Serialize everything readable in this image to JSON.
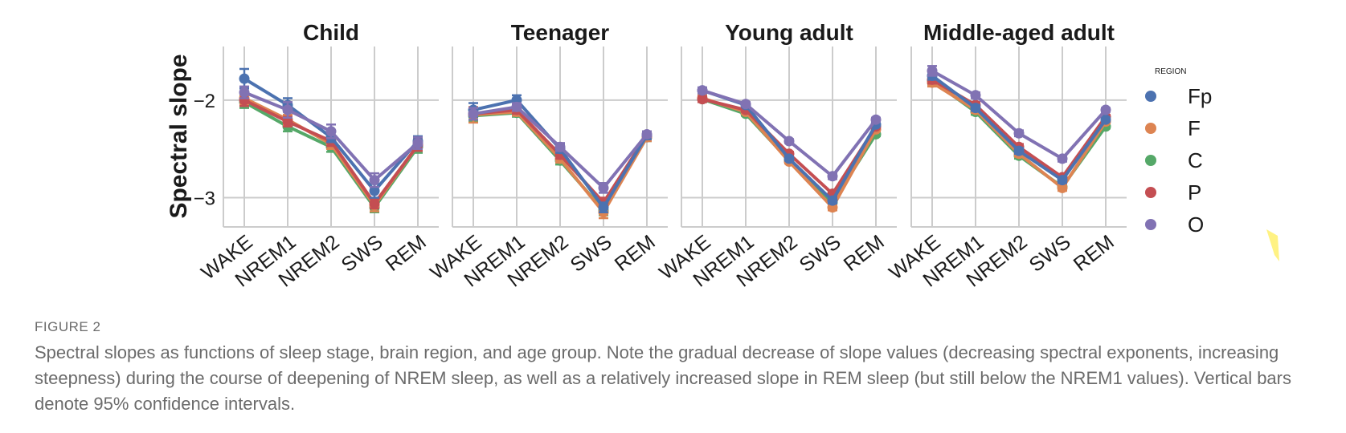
{
  "figure": {
    "label": "FIGURE 2",
    "caption": "Spectral slopes as functions of sleep stage, brain region, and age group. Note the gradual decrease of slope values (decreasing spectral exponents, increasing steepness) during the course of deepening of NREM sleep, as well as a relatively increased slope in REM sleep (but still below the NREM1 values). Vertical bars denote 95% confidence intervals."
  },
  "chart_data": {
    "type": "line",
    "ylabel": "Spectral slope",
    "yticks": [
      -2,
      -3
    ],
    "ylim": [
      -3.3,
      -1.45
    ],
    "grid": true,
    "categories": [
      "WAKE",
      "NREM1",
      "NREM2",
      "SWS",
      "REM"
    ],
    "legend": {
      "title": "REGION",
      "placement": "right"
    },
    "colors": {
      "Fp": "#4c72b0",
      "F": "#dd8452",
      "C": "#55a868",
      "P": "#c44e52",
      "O": "#8172b3"
    },
    "panels": [
      {
        "title": "Child",
        "series": [
          {
            "name": "Fp",
            "values": [
              -1.78,
              -2.05,
              -2.38,
              -2.93,
              -2.42
            ],
            "ci": [
              0.1,
              0.07,
              0.05,
              0.07,
              0.05
            ]
          },
          {
            "name": "F",
            "values": [
              -1.98,
              -2.2,
              -2.45,
              -3.08,
              -2.46
            ],
            "ci": [
              0.06,
              0.05,
              0.05,
              0.06,
              0.06
            ]
          },
          {
            "name": "C",
            "values": [
              -2.02,
              -2.27,
              -2.48,
              -3.1,
              -2.48
            ],
            "ci": [
              0.06,
              0.05,
              0.05,
              0.05,
              0.06
            ]
          },
          {
            "name": "P",
            "values": [
              -2.0,
              -2.22,
              -2.42,
              -3.06,
              -2.46
            ],
            "ci": [
              0.06,
              0.05,
              0.05,
              0.05,
              0.06
            ]
          },
          {
            "name": "O",
            "values": [
              -1.92,
              -2.1,
              -2.32,
              -2.82,
              -2.44
            ],
            "ci": [
              0.06,
              0.08,
              0.07,
              0.07,
              0.06
            ]
          }
        ]
      },
      {
        "title": "Teenager",
        "series": [
          {
            "name": "Fp",
            "values": [
              -2.1,
              -2.0,
              -2.5,
              -3.1,
              -2.36
            ],
            "ci": [
              0.07,
              0.05,
              0.04,
              0.05,
              0.04
            ]
          },
          {
            "name": "F",
            "values": [
              -2.15,
              -2.12,
              -2.6,
              -3.15,
              -2.38
            ],
            "ci": [
              0.08,
              0.04,
              0.04,
              0.06,
              0.04
            ]
          },
          {
            "name": "C",
            "values": [
              -2.16,
              -2.13,
              -2.62,
              -3.13,
              -2.38
            ],
            "ci": [
              0.06,
              0.04,
              0.04,
              0.05,
              0.04
            ]
          },
          {
            "name": "P",
            "values": [
              -2.14,
              -2.1,
              -2.56,
              -3.05,
              -2.36
            ],
            "ci": [
              0.06,
              0.04,
              0.04,
              0.05,
              0.04
            ]
          },
          {
            "name": "O",
            "values": [
              -2.14,
              -2.07,
              -2.48,
              -2.9,
              -2.35
            ],
            "ci": [
              0.06,
              0.04,
              0.04,
              0.05,
              0.03
            ]
          }
        ]
      },
      {
        "title": "Young adult",
        "series": [
          {
            "name": "Fp",
            "values": [
              -1.9,
              -2.05,
              -2.6,
              -3.03,
              -2.25
            ],
            "ci": [
              0.03,
              0.02,
              0.02,
              0.03,
              0.02
            ]
          },
          {
            "name": "F",
            "values": [
              -1.98,
              -2.12,
              -2.63,
              -3.1,
              -2.3
            ],
            "ci": [
              0.03,
              0.02,
              0.02,
              0.03,
              0.02
            ]
          },
          {
            "name": "C",
            "values": [
              -1.99,
              -2.14,
              -2.62,
              -3.05,
              -2.35
            ],
            "ci": [
              0.03,
              0.02,
              0.02,
              0.03,
              0.02
            ]
          },
          {
            "name": "P",
            "values": [
              -1.99,
              -2.1,
              -2.55,
              -2.96,
              -2.27
            ],
            "ci": [
              0.03,
              0.02,
              0.02,
              0.03,
              0.02
            ]
          },
          {
            "name": "O",
            "values": [
              -1.9,
              -2.04,
              -2.42,
              -2.78,
              -2.2
            ],
            "ci": [
              0.03,
              0.02,
              0.02,
              0.03,
              0.02
            ]
          }
        ]
      },
      {
        "title": "Middle-aged adult",
        "series": [
          {
            "name": "Fp",
            "values": [
              -1.75,
              -2.08,
              -2.52,
              -2.82,
              -2.2
            ],
            "ci": [
              0.04,
              0.03,
              0.03,
              0.03,
              0.02
            ]
          },
          {
            "name": "F",
            "values": [
              -1.82,
              -2.1,
              -2.55,
              -2.9,
              -2.22
            ],
            "ci": [
              0.04,
              0.03,
              0.03,
              0.03,
              0.02
            ]
          },
          {
            "name": "C",
            "values": [
              -1.8,
              -2.12,
              -2.57,
              -2.89,
              -2.27
            ],
            "ci": [
              0.04,
              0.03,
              0.03,
              0.03,
              0.02
            ]
          },
          {
            "name": "P",
            "values": [
              -1.79,
              -2.05,
              -2.48,
              -2.79,
              -2.17
            ],
            "ci": [
              0.04,
              0.03,
              0.03,
              0.03,
              0.02
            ]
          },
          {
            "name": "O",
            "values": [
              -1.7,
              -1.95,
              -2.34,
              -2.6,
              -2.1
            ],
            "ci": [
              0.05,
              0.03,
              0.03,
              0.03,
              0.02
            ]
          }
        ]
      }
    ]
  }
}
